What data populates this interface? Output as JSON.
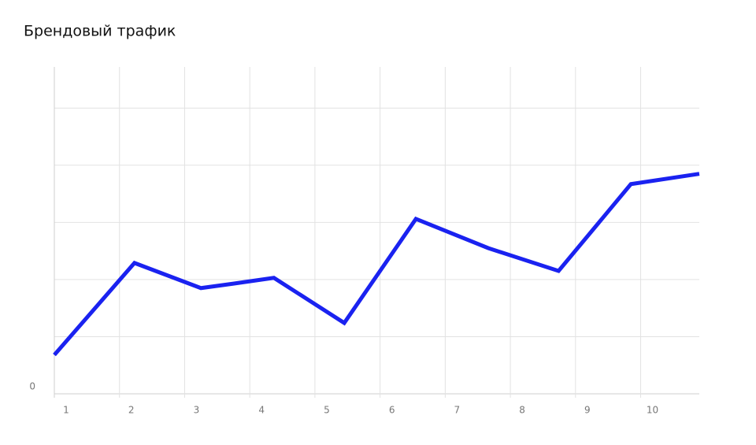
{
  "chart_data": {
    "type": "line",
    "title": "Брендовый трафик",
    "x": [
      1.0,
      2.23,
      3.25,
      3.76,
      4.37,
      5.45,
      6.55,
      7.66,
      8.74,
      9.85,
      10.9
    ],
    "series": [
      {
        "color": "#1a22f0",
        "values": [
          0.68,
          2.29,
          1.85,
          1.93,
          2.03,
          1.24,
          3.06,
          2.55,
          2.15,
          3.67,
          3.85
        ]
      }
    ],
    "xlim": [
      1,
      10.9
    ],
    "xticks": [
      1,
      2,
      3,
      4,
      5,
      6,
      7,
      8,
      9,
      10
    ],
    "ylim": [
      0,
      5.72
    ],
    "yticks": [
      0
    ],
    "ygrid": [
      1,
      2,
      3,
      4,
      5
    ],
    "grid": true
  }
}
